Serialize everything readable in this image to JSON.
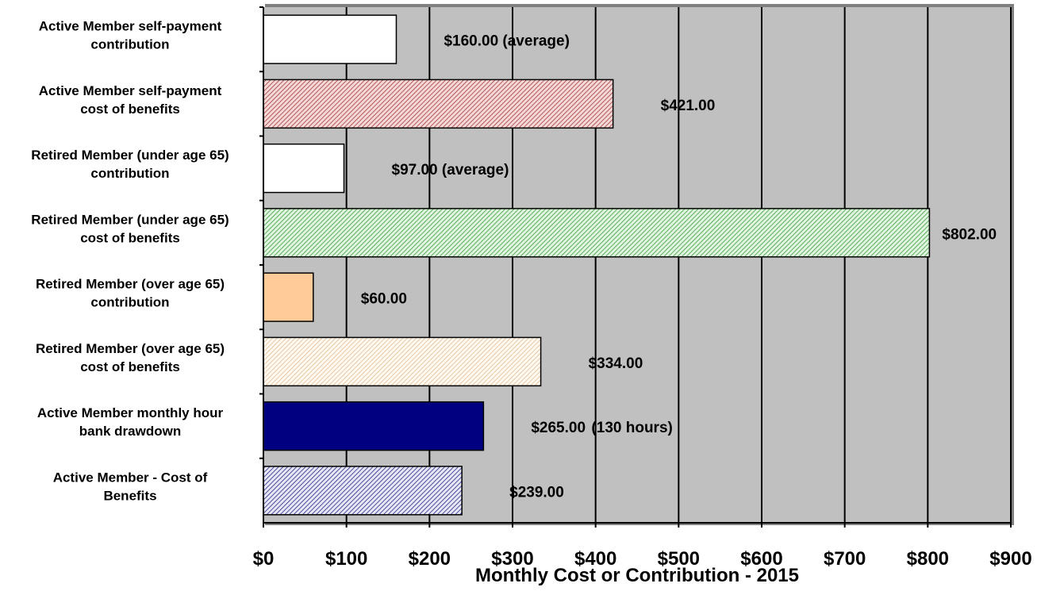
{
  "chart_data": {
    "type": "bar",
    "orientation": "horizontal",
    "title": "",
    "xlabel": "Monthly Cost or Contribution - 2015",
    "ylabel": "",
    "xlim": [
      0,
      900
    ],
    "x_ticks": [
      0,
      100,
      200,
      300,
      400,
      500,
      600,
      700,
      800,
      900
    ],
    "x_tick_labels": [
      "$0",
      "$100",
      "$200",
      "$300",
      "$400",
      "$500",
      "$600",
      "$700",
      "$800",
      "$900"
    ],
    "grid": true,
    "legend": "none",
    "plot_background": "#c0c0c0",
    "categories": [
      "Active Member self-payment contribution",
      "Active Member self-payment cost of benefits",
      "Retired Member (under age 65) contribution",
      "Retired Member (under age 65) cost of benefits",
      "Retired Member (over age 65) contribution",
      "Retired Member (over age 65) cost of benefits",
      "Active Member monthly hour bank drawdown",
      "Active Member - Cost of Benefits"
    ],
    "category_label_lines": [
      [
        "Active Member self-payment",
        "contribution"
      ],
      [
        "Active Member self-payment",
        "cost of benefits"
      ],
      [
        "Retired Member (under age 65)",
        "contribution"
      ],
      [
        "Retired Member (under age 65)",
        "cost of benefits"
      ],
      [
        "Retired Member (over age 65)",
        "contribution"
      ],
      [
        "Retired Member (over age 65)",
        "cost of benefits"
      ],
      [
        "Active Member monthly hour",
        "bank drawdown"
      ],
      [
        "Active Member - Cost of",
        "Benefits"
      ]
    ],
    "values": [
      160,
      421,
      97,
      802,
      60,
      334,
      265,
      239
    ],
    "data_labels": [
      "$160.00 (average)",
      "$421.00",
      "$97.00 (average)",
      "$802.00",
      "$60.00",
      "$334.00",
      "$265.00",
      "$239.00"
    ],
    "annotations": [
      {
        "text": "(130 hours)",
        "category_index": 6,
        "x": 395
      }
    ],
    "bar_styles": [
      {
        "fill": "#ffffff",
        "pattern": "none",
        "pattern_color": "#ffffff"
      },
      {
        "fill": "#f4d8d8",
        "pattern": "diagonal",
        "pattern_color": "#a83a3a"
      },
      {
        "fill": "#ffffff",
        "pattern": "none",
        "pattern_color": "#ffffff"
      },
      {
        "fill": "#dff5df",
        "pattern": "diagonal",
        "pattern_color": "#3f9a3f"
      },
      {
        "fill": "#ffcc99",
        "pattern": "none",
        "pattern_color": "#ffcc99"
      },
      {
        "fill": "#fffaf2",
        "pattern": "diagonal",
        "pattern_color": "#e3ba91"
      },
      {
        "fill": "#000080",
        "pattern": "none",
        "pattern_color": "#000080"
      },
      {
        "fill": "#e6e6f5",
        "pattern": "diagonal",
        "pattern_color": "#2a2a8a"
      }
    ]
  }
}
